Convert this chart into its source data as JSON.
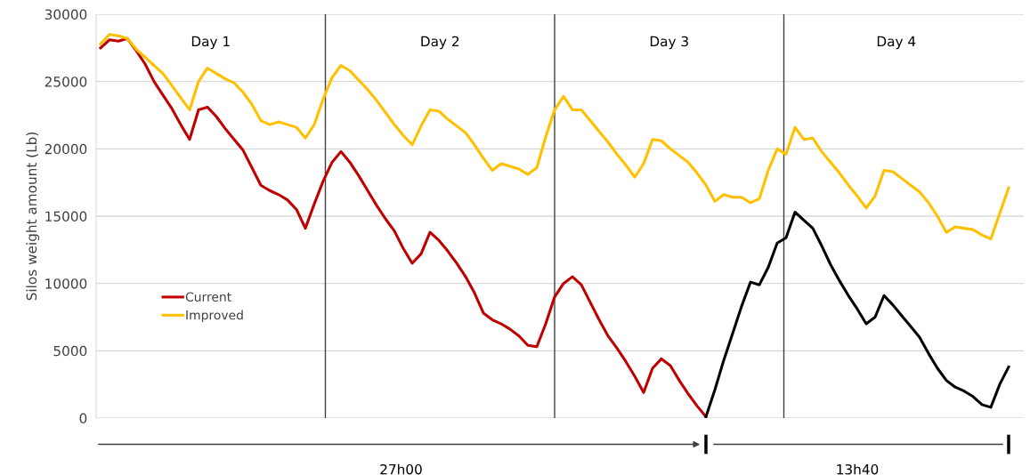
{
  "chart_data": {
    "type": "line",
    "ylabel": "Silos weight amount (Lb)",
    "categories": [
      null,
      null,
      null,
      null,
      null,
      null,
      null,
      null,
      null,
      null,
      null,
      null,
      null,
      null,
      null,
      null,
      null,
      null,
      null,
      null,
      null,
      null,
      null,
      null,
      null,
      null,
      null,
      null,
      null,
      null,
      null,
      null,
      null,
      null,
      null,
      null,
      null,
      null,
      null,
      null,
      null,
      null,
      null,
      null,
      null,
      null,
      null,
      null,
      null,
      null,
      null,
      null,
      null,
      null,
      null,
      null,
      null,
      null,
      null,
      null,
      null,
      null,
      null,
      null,
      null,
      null,
      null,
      null,
      null,
      null,
      null,
      null,
      null,
      null,
      null,
      null,
      null,
      null,
      null,
      null,
      null,
      null,
      null,
      null,
      null,
      null,
      null,
      null,
      null,
      null,
      null,
      null,
      null,
      null,
      null,
      null,
      null,
      null,
      null,
      null,
      null,
      null,
      null
    ],
    "series": [
      {
        "name": "Current",
        "color": "#c00000",
        "values": [
          27500,
          28100,
          28000,
          28200,
          27300,
          26300,
          25000,
          24000,
          23000,
          21800,
          20700,
          22900,
          23100,
          22400,
          21500,
          20700,
          19900,
          18600,
          17300,
          16900,
          16600,
          16200,
          15500,
          14100,
          15900,
          17600,
          19000,
          19800,
          19000,
          18000,
          16900,
          15800,
          14800,
          13900,
          12600,
          11500,
          12200,
          13800,
          13200,
          12400,
          11500,
          10500,
          9300,
          7800,
          7300,
          7000,
          6600,
          6100,
          5400,
          5300,
          7000,
          9000,
          10000,
          10500,
          9900,
          8600,
          7300,
          6100,
          5200,
          4200,
          3100,
          1900,
          3700,
          4400,
          3900,
          2800,
          1800,
          900,
          100,
          null,
          null,
          null,
          null,
          null,
          null,
          null,
          null,
          null,
          null,
          null,
          null,
          null,
          null,
          null,
          null,
          null,
          null,
          null,
          null,
          null,
          null,
          null,
          null,
          null,
          null,
          null,
          null,
          null,
          null,
          null,
          null,
          null,
          null
        ]
      },
      {
        "name": "Improved",
        "color": "#ffc000",
        "values": [
          27800,
          28500,
          28400,
          28200,
          27400,
          26800,
          26200,
          25600,
          24700,
          23800,
          22900,
          25000,
          26000,
          25600,
          25200,
          24900,
          24200,
          23300,
          22100,
          21800,
          22000,
          21800,
          21600,
          20800,
          21800,
          23700,
          25300,
          26200,
          25800,
          25100,
          24400,
          23600,
          22700,
          21800,
          21000,
          20300,
          21700,
          22900,
          22800,
          22200,
          21700,
          21200,
          20300,
          19300,
          18400,
          18900,
          18700,
          18500,
          18100,
          18600,
          20900,
          22900,
          23900,
          22900,
          22900,
          22100,
          21300,
          20500,
          19600,
          18800,
          17900,
          18900,
          20700,
          20600,
          20000,
          19500,
          19000,
          18200,
          17300,
          16100,
          16600,
          16400,
          16400,
          16000,
          16300,
          18400,
          20000,
          19600,
          21600,
          20700,
          20800,
          19800,
          19000,
          18200,
          17300,
          16500,
          15600,
          16500,
          18400,
          18300,
          17800,
          17300,
          16800,
          16000,
          15000,
          13800,
          14200,
          14100,
          14000,
          13600,
          13300,
          15200,
          17100
        ]
      },
      {
        "color": "#000000",
        "values": [
          null,
          null,
          null,
          null,
          null,
          null,
          null,
          null,
          null,
          null,
          null,
          null,
          null,
          null,
          null,
          null,
          null,
          null,
          null,
          null,
          null,
          null,
          null,
          null,
          null,
          null,
          null,
          null,
          null,
          null,
          null,
          null,
          null,
          null,
          null,
          null,
          null,
          null,
          null,
          null,
          null,
          null,
          null,
          null,
          null,
          null,
          null,
          null,
          null,
          null,
          null,
          null,
          null,
          null,
          null,
          null,
          null,
          null,
          null,
          null,
          null,
          null,
          null,
          null,
          null,
          null,
          null,
          null,
          100,
          2100,
          4300,
          6300,
          8300,
          10100,
          9900,
          11200,
          13000,
          13400,
          15300,
          14700,
          14100,
          12800,
          11400,
          10200,
          9100,
          8100,
          7000,
          7500,
          9100,
          8400,
          7600,
          6800,
          6000,
          4800,
          3700,
          2800,
          2300,
          2000,
          1600,
          1000,
          800,
          2500,
          3800
        ]
      }
    ],
    "ylim": [
      0,
      30000
    ],
    "yticks": [
      0,
      5000,
      10000,
      15000,
      20000,
      25000,
      30000
    ],
    "tick_labels": "y",
    "grid": "y",
    "legend": "center left",
    "annotations": [
      "Day 1",
      "Day 2",
      "Day 3",
      "Day 4",
      "27h00",
      "13h40"
    ]
  }
}
